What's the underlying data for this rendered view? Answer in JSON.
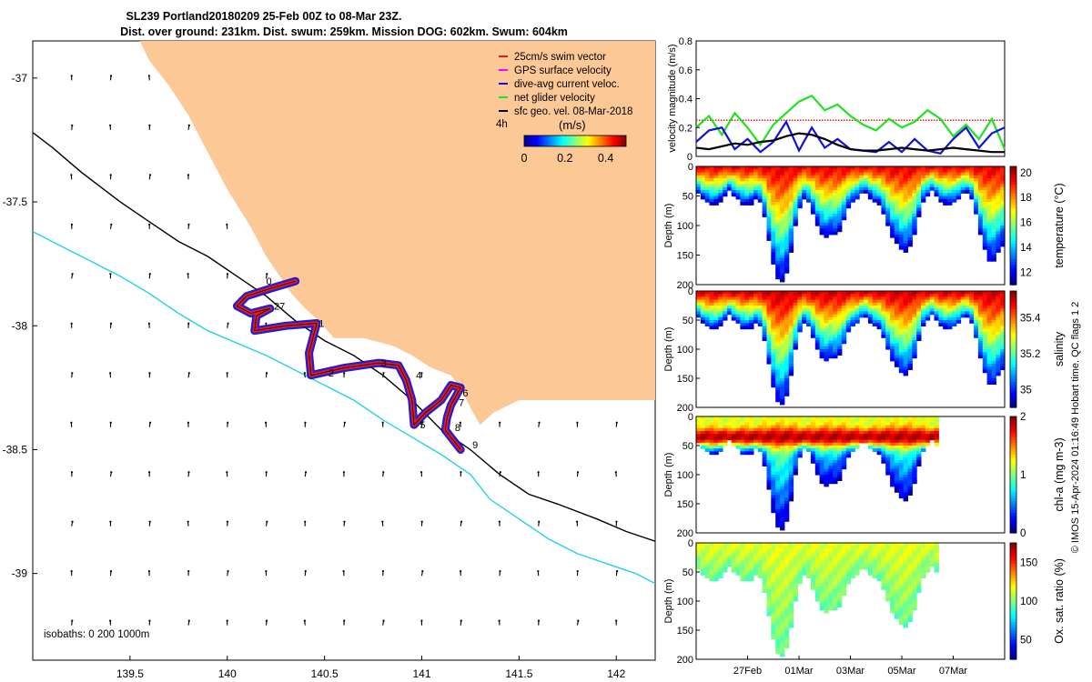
{
  "header": {
    "line1": "SL239 Portland20180209 25-Feb 00Z to 08-Mar 23Z.",
    "line2": "Dist. over ground: 231km. Dist. swum: 259km. Mission DOG: 602km. Swum: 604km"
  },
  "credit": "© IMOS 15-Apr-2024 01:16:49 Hobart time. QC flags 1  2",
  "colors": {
    "land": "#fbc896",
    "isobath_shallow": "#000000",
    "isobath_deep": "#22d3e6",
    "swim_vector": "#e8191a",
    "gps_velocity": "#ff00ff",
    "dive_current": "#1010e0",
    "net_velocity": "#22e022",
    "geo_velocity": "#000000"
  },
  "chart_data": [
    {
      "type": "map",
      "xlim": [
        139.0,
        142.2
      ],
      "ylim": [
        -39.35,
        -36.85
      ],
      "x_ticks": [
        139.5,
        140,
        140.5,
        141,
        141.5,
        142
      ],
      "x_tick_labels": [
        "139.5",
        "140",
        "140.5",
        "141",
        "141.5",
        "142"
      ],
      "y_ticks": [
        -37,
        -37.5,
        -38,
        -38.5,
        -39
      ],
      "y_tick_labels": [
        "-37",
        "-37.5",
        "-38",
        "-38.5",
        "-39"
      ],
      "legend": [
        {
          "label": "25cm/s swim vector",
          "color": "#e8191a"
        },
        {
          "label": "GPS surface velocity",
          "color": "#ff00ff"
        },
        {
          "label": "dive-avg current veloc.",
          "color": "#1010e0"
        },
        {
          "label": "net glider velocity",
          "color": "#22e022"
        },
        {
          "label": "sfc geo. vel. 08-Mar-2018",
          "color": "#000000"
        }
      ],
      "legend_placement": "top-right",
      "colorbar": {
        "label": "(m/s)",
        "side_label": "4h",
        "ticks": [
          "0",
          "0.2",
          "0.4"
        ],
        "range": [
          0,
          0.5
        ]
      },
      "isobaths_label": "isobaths: 0   200   1000m",
      "land": [
        [
          139.55,
          -36.85
        ],
        [
          142.2,
          -36.85
        ],
        [
          142.2,
          -38.3
        ],
        [
          141.5,
          -38.3
        ],
        [
          141.37,
          -38.35
        ],
        [
          141.3,
          -38.4
        ],
        [
          141.25,
          -38.33
        ],
        [
          141.2,
          -38.25
        ],
        [
          141.15,
          -38.2
        ],
        [
          141.05,
          -38.17
        ],
        [
          140.95,
          -38.12
        ],
        [
          140.85,
          -38.08
        ],
        [
          140.7,
          -38.05
        ],
        [
          140.55,
          -38.05
        ],
        [
          140.47,
          -37.98
        ],
        [
          140.4,
          -37.93
        ],
        [
          140.33,
          -37.87
        ],
        [
          140.27,
          -37.8
        ],
        [
          140.2,
          -37.72
        ],
        [
          140.12,
          -37.6
        ],
        [
          140.0,
          -37.45
        ],
        [
          139.9,
          -37.3
        ],
        [
          139.8,
          -37.15
        ],
        [
          139.7,
          -37.03
        ],
        [
          139.6,
          -36.93
        ]
      ],
      "isobath_200": [
        [
          139.0,
          -37.22
        ],
        [
          139.1,
          -37.28
        ],
        [
          139.25,
          -37.38
        ],
        [
          139.45,
          -37.5
        ],
        [
          139.6,
          -37.58
        ],
        [
          139.75,
          -37.66
        ],
        [
          139.9,
          -37.72
        ],
        [
          140.05,
          -37.8
        ],
        [
          140.2,
          -37.88
        ],
        [
          140.35,
          -37.98
        ],
        [
          140.5,
          -38.06
        ],
        [
          140.65,
          -38.12
        ],
        [
          140.8,
          -38.2
        ],
        [
          140.95,
          -38.3
        ],
        [
          141.1,
          -38.42
        ],
        [
          141.25,
          -38.5
        ],
        [
          141.4,
          -38.6
        ],
        [
          141.55,
          -38.68
        ],
        [
          141.7,
          -38.72
        ],
        [
          141.9,
          -38.78
        ],
        [
          142.05,
          -38.83
        ],
        [
          142.2,
          -38.87
        ]
      ],
      "isobath_1000": [
        [
          139.0,
          -37.62
        ],
        [
          139.15,
          -37.68
        ],
        [
          139.3,
          -37.74
        ],
        [
          139.45,
          -37.8
        ],
        [
          139.6,
          -37.87
        ],
        [
          139.75,
          -37.95
        ],
        [
          139.9,
          -38.02
        ],
        [
          140.05,
          -38.07
        ],
        [
          140.2,
          -38.12
        ],
        [
          140.35,
          -38.18
        ],
        [
          140.5,
          -38.24
        ],
        [
          140.65,
          -38.3
        ],
        [
          140.8,
          -38.38
        ],
        [
          140.95,
          -38.45
        ],
        [
          141.1,
          -38.52
        ],
        [
          141.25,
          -38.6
        ],
        [
          141.35,
          -38.7
        ],
        [
          141.5,
          -38.78
        ],
        [
          141.65,
          -38.86
        ],
        [
          141.8,
          -38.92
        ],
        [
          141.95,
          -38.96
        ],
        [
          142.1,
          -39.0
        ],
        [
          142.2,
          -39.04
        ]
      ],
      "glider_track": [
        [
          140.35,
          -37.82
        ],
        [
          140.22,
          -37.85
        ],
        [
          140.1,
          -37.88
        ],
        [
          140.05,
          -37.92
        ],
        [
          140.12,
          -37.95
        ],
        [
          140.22,
          -37.93
        ],
        [
          140.15,
          -37.96
        ],
        [
          140.14,
          -38.02
        ],
        [
          140.3,
          -38.0
        ],
        [
          140.46,
          -37.99
        ],
        [
          140.44,
          -38.05
        ],
        [
          140.42,
          -38.11
        ],
        [
          140.43,
          -38.2
        ],
        [
          140.6,
          -38.17
        ],
        [
          140.78,
          -38.15
        ],
        [
          140.88,
          -38.16
        ],
        [
          140.92,
          -38.22
        ],
        [
          140.95,
          -38.3
        ],
        [
          140.96,
          -38.4
        ],
        [
          141.02,
          -38.35
        ],
        [
          141.1,
          -38.3
        ],
        [
          141.15,
          -38.24
        ],
        [
          141.2,
          -38.25
        ],
        [
          141.15,
          -38.32
        ],
        [
          141.13,
          -38.37
        ],
        [
          141.12,
          -38.42
        ],
        [
          141.2,
          -38.5
        ]
      ],
      "waypoints": [
        {
          "label": "1",
          "lon": 140.47,
          "lat": -37.99
        },
        {
          "label": "2",
          "lon": 140.52,
          "lat": -38.19
        },
        {
          "label": "3",
          "lon": 140.79,
          "lat": -38.15
        },
        {
          "label": "4",
          "lon": 140.97,
          "lat": -38.2
        },
        {
          "label": "5",
          "lon": 140.99,
          "lat": -38.4
        },
        {
          "label": "6",
          "lon": 141.21,
          "lat": -38.27
        },
        {
          "label": "7",
          "lon": 141.19,
          "lat": -38.31
        },
        {
          "label": "8",
          "lon": 141.17,
          "lat": -38.41
        },
        {
          "label": "9",
          "lon": 141.26,
          "lat": -38.48
        },
        {
          "label": "27",
          "lon": 140.24,
          "lat": -37.92
        },
        {
          "label": "0",
          "lon": 140.2,
          "lat": -37.82
        }
      ],
      "arrow_grid": {
        "lon_start": 139.2,
        "lon_step": 0.2,
        "lat_start": -37.0,
        "lat_step": -0.2,
        "lon_end": 142.1,
        "lat_end": -39.3,
        "u_default": 0.0,
        "v_default": 0.08
      }
    },
    {
      "type": "line",
      "ylabel": "velocity magnitude (m/s)",
      "ylim": [
        0,
        0.8
      ],
      "y_ticks": [
        0,
        0.2,
        0.4,
        0.6,
        0.8
      ],
      "x_range_days": [
        0,
        12
      ],
      "series": [
        {
          "name": "25cm/s swim vector",
          "color": "#e8191a",
          "style": "dotted",
          "x": [
            0,
            12
          ],
          "y": [
            0.25,
            0.25
          ]
        },
        {
          "name": "net glider velocity",
          "color": "#22e022",
          "x": [
            0,
            0.5,
            1,
            1.5,
            2,
            2.5,
            3,
            3.5,
            4,
            4.5,
            5,
            5.5,
            6,
            6.5,
            7,
            7.5,
            8,
            8.5,
            9,
            9.5,
            10,
            10.5,
            11,
            11.5,
            12
          ],
          "y": [
            0.2,
            0.28,
            0.15,
            0.3,
            0.2,
            0.08,
            0.22,
            0.3,
            0.38,
            0.42,
            0.32,
            0.36,
            0.28,
            0.22,
            0.18,
            0.26,
            0.2,
            0.24,
            0.32,
            0.26,
            0.14,
            0.22,
            0.12,
            0.26,
            0.05
          ]
        },
        {
          "name": "dive-avg current veloc.",
          "color": "#1010e0",
          "x": [
            0,
            0.5,
            1,
            1.5,
            2,
            2.5,
            3,
            3.5,
            4,
            4.5,
            5,
            5.5,
            6,
            6.5,
            7,
            7.5,
            8,
            8.5,
            9,
            9.5,
            10,
            10.5,
            11,
            11.5,
            12
          ],
          "y": [
            0.1,
            0.18,
            0.2,
            0.05,
            0.12,
            0.03,
            0.1,
            0.24,
            0.04,
            0.2,
            0.06,
            0.12,
            0.05,
            0.04,
            0.03,
            0.1,
            0.03,
            0.12,
            0.04,
            0.02,
            0.12,
            0.2,
            0.06,
            0.16,
            0.2
          ]
        },
        {
          "name": "sfc geo. vel. 08-Mar-2018",
          "color": "#000000",
          "x": [
            0,
            0.5,
            1,
            1.5,
            2,
            2.5,
            3,
            3.5,
            4,
            4.5,
            5,
            5.5,
            6,
            6.5,
            7,
            7.5,
            8,
            8.5,
            9,
            9.5,
            10,
            10.5,
            11,
            11.5,
            12
          ],
          "y": [
            0.06,
            0.05,
            0.07,
            0.09,
            0.08,
            0.1,
            0.11,
            0.14,
            0.16,
            0.15,
            0.12,
            0.08,
            0.05,
            0.04,
            0.04,
            0.05,
            0.06,
            0.05,
            0.04,
            0.05,
            0.06,
            0.05,
            0.04,
            0.03,
            0.03
          ]
        }
      ]
    },
    {
      "type": "heatmap",
      "variable": "temperature",
      "colorbar_label": "temperature (°C)",
      "ylabel": "Depth (m)",
      "ylim": [
        200,
        0
      ],
      "y_ticks": [
        0,
        50,
        100,
        150,
        200
      ],
      "color_range": [
        11,
        20.5
      ],
      "colorbar_ticks": [
        "12",
        "14",
        "16",
        "18",
        "20"
      ],
      "data_end_day": 12,
      "surface": 19.5,
      "deep": 11.5
    },
    {
      "type": "heatmap",
      "variable": "salinity",
      "colorbar_label": "salinity",
      "ylabel": "Depth (m)",
      "ylim": [
        200,
        0
      ],
      "y_ticks": [
        0,
        50,
        100,
        150,
        200
      ],
      "color_range": [
        34.9,
        35.55
      ],
      "colorbar_ticks": [
        "35",
        "35.2",
        "35.4"
      ],
      "data_end_day": 12,
      "surface": 35.5,
      "deep": 34.95
    },
    {
      "type": "heatmap",
      "variable": "chl-a",
      "colorbar_label": "chl-a (mg m-3)",
      "ylabel": "Depth (m)",
      "ylim": [
        200,
        0
      ],
      "y_ticks": [
        0,
        50,
        100,
        150,
        200
      ],
      "color_range": [
        0,
        2
      ],
      "colorbar_ticks": [
        "0",
        "1",
        "2"
      ],
      "data_end_day": 9.4,
      "surface": 1.2,
      "deep": 0.1,
      "subsurface_max": 1.9
    },
    {
      "type": "heatmap",
      "variable": "oxygen",
      "colorbar_label": "Ox. sat. ratio (%)",
      "ylabel": "Depth (m)",
      "ylim": [
        200,
        0
      ],
      "y_ticks": [
        0,
        50,
        100,
        150,
        200
      ],
      "color_range": [
        25,
        175
      ],
      "colorbar_ticks": [
        "50",
        "100",
        "150"
      ],
      "data_end_day": 9.4,
      "surface": 115,
      "deep": 95,
      "x_ticks_days": [
        2,
        4,
        6,
        8,
        10
      ],
      "x_tick_labels": [
        "27Feb",
        "01Mar",
        "03Mar",
        "05Mar",
        "07Mar"
      ]
    }
  ]
}
